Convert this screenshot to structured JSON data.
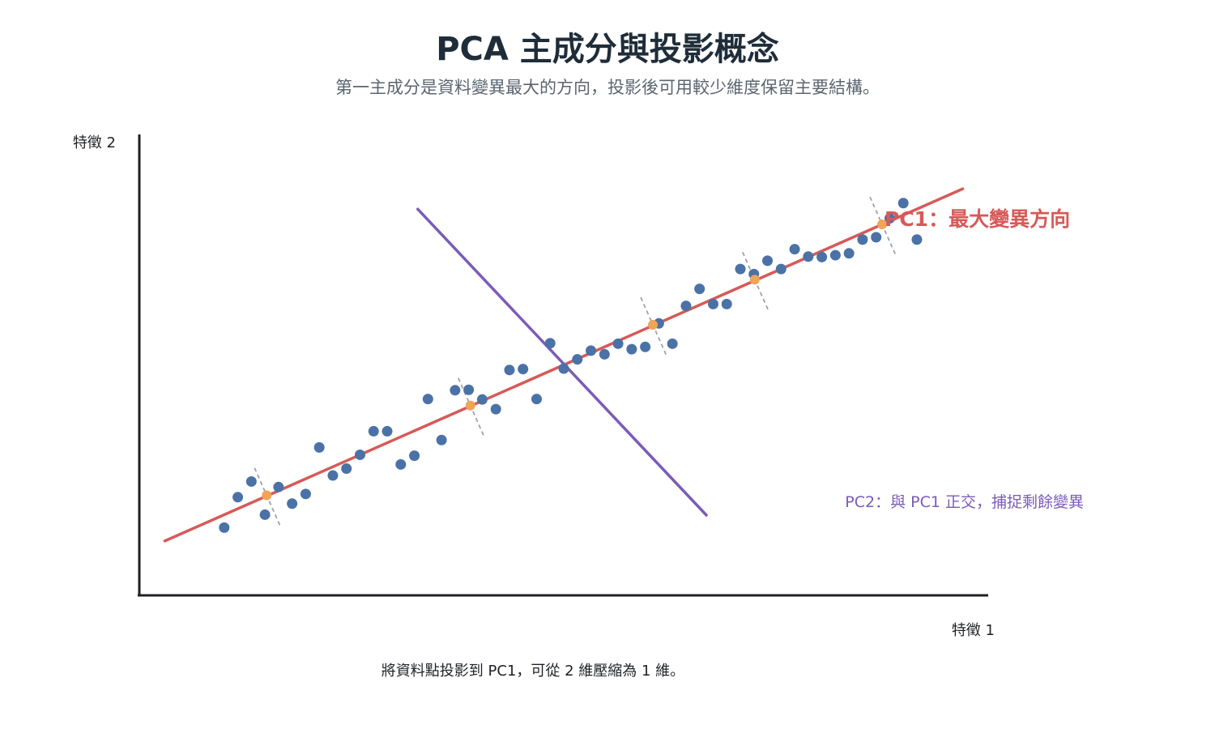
{
  "title": "PCA 主成分與投影概念",
  "subtitle": "第一主成分是資料變異最大的方向，投影後可用較少維度保留主要結構。",
  "colors": {
    "points": "#4a72a6",
    "pc1": "#d65a58",
    "pc2": "#7b5bb8",
    "projection": "#f0a455",
    "projection_line": "#9aa3ad",
    "axis": "#1f2125",
    "title": "#1f2d3a",
    "subtitle": "#5b6570"
  },
  "chart_data": {
    "type": "scatter",
    "title": "PCA 主成分與投影概念",
    "subtitle": "第一主成分是資料變異最大的方向，投影後可用較少維度保留主要結構。",
    "xlabel": "特徵 1",
    "ylabel": "特徵 2",
    "xlim": [
      0,
      10
    ],
    "ylim": [
      0,
      10
    ],
    "grid": false,
    "points": [
      [
        1.0,
        1.47
      ],
      [
        1.16,
        2.13
      ],
      [
        1.32,
        2.47
      ],
      [
        1.48,
        1.75
      ],
      [
        1.64,
        2.35
      ],
      [
        1.8,
        1.99
      ],
      [
        1.96,
        2.2
      ],
      [
        2.12,
        3.21
      ],
      [
        2.28,
        2.6
      ],
      [
        2.44,
        2.75
      ],
      [
        2.6,
        3.05
      ],
      [
        2.76,
        3.56
      ],
      [
        2.92,
        3.56
      ],
      [
        3.08,
        2.84
      ],
      [
        3.24,
        3.03
      ],
      [
        3.4,
        4.26
      ],
      [
        3.56,
        3.37
      ],
      [
        3.72,
        4.45
      ],
      [
        3.88,
        4.46
      ],
      [
        4.04,
        4.25
      ],
      [
        4.2,
        4.04
      ],
      [
        4.36,
        4.89
      ],
      [
        4.52,
        4.91
      ],
      [
        4.68,
        4.26
      ],
      [
        4.84,
        5.47
      ],
      [
        5.0,
        4.92
      ],
      [
        5.16,
        5.12
      ],
      [
        5.32,
        5.31
      ],
      [
        5.48,
        5.23
      ],
      [
        5.64,
        5.46
      ],
      [
        5.8,
        5.34
      ],
      [
        5.96,
        5.39
      ],
      [
        6.12,
        5.9
      ],
      [
        6.28,
        5.46
      ],
      [
        6.44,
        6.28
      ],
      [
        6.6,
        6.65
      ],
      [
        6.76,
        6.32
      ],
      [
        6.92,
        6.32
      ],
      [
        7.08,
        7.08
      ],
      [
        7.24,
        6.97
      ],
      [
        7.4,
        7.26
      ],
      [
        7.56,
        7.08
      ],
      [
        7.72,
        7.51
      ],
      [
        7.88,
        7.35
      ],
      [
        8.04,
        7.34
      ],
      [
        8.2,
        7.38
      ],
      [
        8.36,
        7.42
      ],
      [
        8.52,
        7.72
      ],
      [
        8.68,
        7.77
      ],
      [
        8.84,
        8.18
      ],
      [
        9.0,
        8.51
      ],
      [
        9.16,
        7.72
      ]
    ],
    "pc1": {
      "start": [
        0.3,
        1.18
      ],
      "end": [
        9.7,
        8.82
      ],
      "label": "PC1：最大變異方向"
    },
    "pc2": {
      "start": [
        3.28,
        8.38
      ],
      "end": [
        6.68,
        1.74
      ],
      "label": "PC2：與 PC1 正交，捕捉剩餘變異"
    },
    "projected_points": [
      {
        "source": [
          1.48,
          1.75
        ],
        "projection": [
          1.5,
          2.17
        ]
      },
      {
        "source": [
          3.88,
          4.46
        ],
        "projection": [
          3.9,
          4.12
        ]
      },
      {
        "source": [
          6.12,
          5.9
        ],
        "projection": [
          6.05,
          5.87
        ]
      },
      {
        "source": [
          7.24,
          6.97
        ],
        "projection": [
          7.25,
          6.85
        ]
      },
      {
        "source": [
          8.68,
          7.77
        ],
        "projection": [
          8.75,
          8.05
        ]
      }
    ],
    "annotation": "將資料點投影到 PC1，可從 2 維壓縮為 1 維。"
  }
}
